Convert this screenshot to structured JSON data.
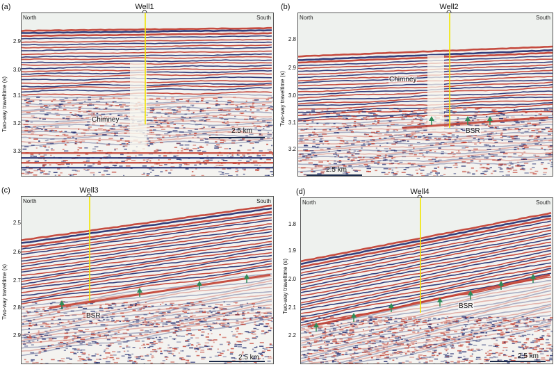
{
  "panels": [
    {
      "label": "(a)",
      "well": "Well1",
      "north": "North",
      "south": "South",
      "ytitle": "Two-way traveltime (s)",
      "ticks": [
        "2.9",
        "3.0",
        "3.1",
        "3.2",
        "3.3"
      ],
      "annotations": [
        "Chimney"
      ],
      "scale": "2.5 km"
    },
    {
      "label": "(b)",
      "well": "Well2",
      "north": "North",
      "south": "South",
      "ytitle": "Two-way traveltime (s)",
      "ticks": [
        "2.8",
        "2.9",
        "3.0",
        "3.1",
        "3.2"
      ],
      "annotations": [
        "Chimney",
        "BSR"
      ],
      "scale": "2.5 km"
    },
    {
      "label": "(c)",
      "well": "Well3",
      "north": "North",
      "south": "South",
      "ytitle": "Two-way traveltime (s)",
      "ticks": [
        "2.5",
        "2.6",
        "2.7",
        "2.8",
        "2.9"
      ],
      "annotations": [
        "BSR"
      ],
      "scale": "2.5 km"
    },
    {
      "label": "(d)",
      "well": "Well4",
      "north": "North",
      "south": "South",
      "ytitle": "Two-way traveltime (s)",
      "ticks": [
        "1.8",
        "1.9",
        "2.0",
        "2.1",
        "2.2"
      ],
      "annotations": [
        "BSR"
      ],
      "scale": "2.5 km"
    }
  ],
  "colors": {
    "seismic_red": "#c0392b",
    "seismic_blue": "#1f2a6e",
    "well_line": "#f2e600",
    "arrow_green": "#2e8b57"
  }
}
